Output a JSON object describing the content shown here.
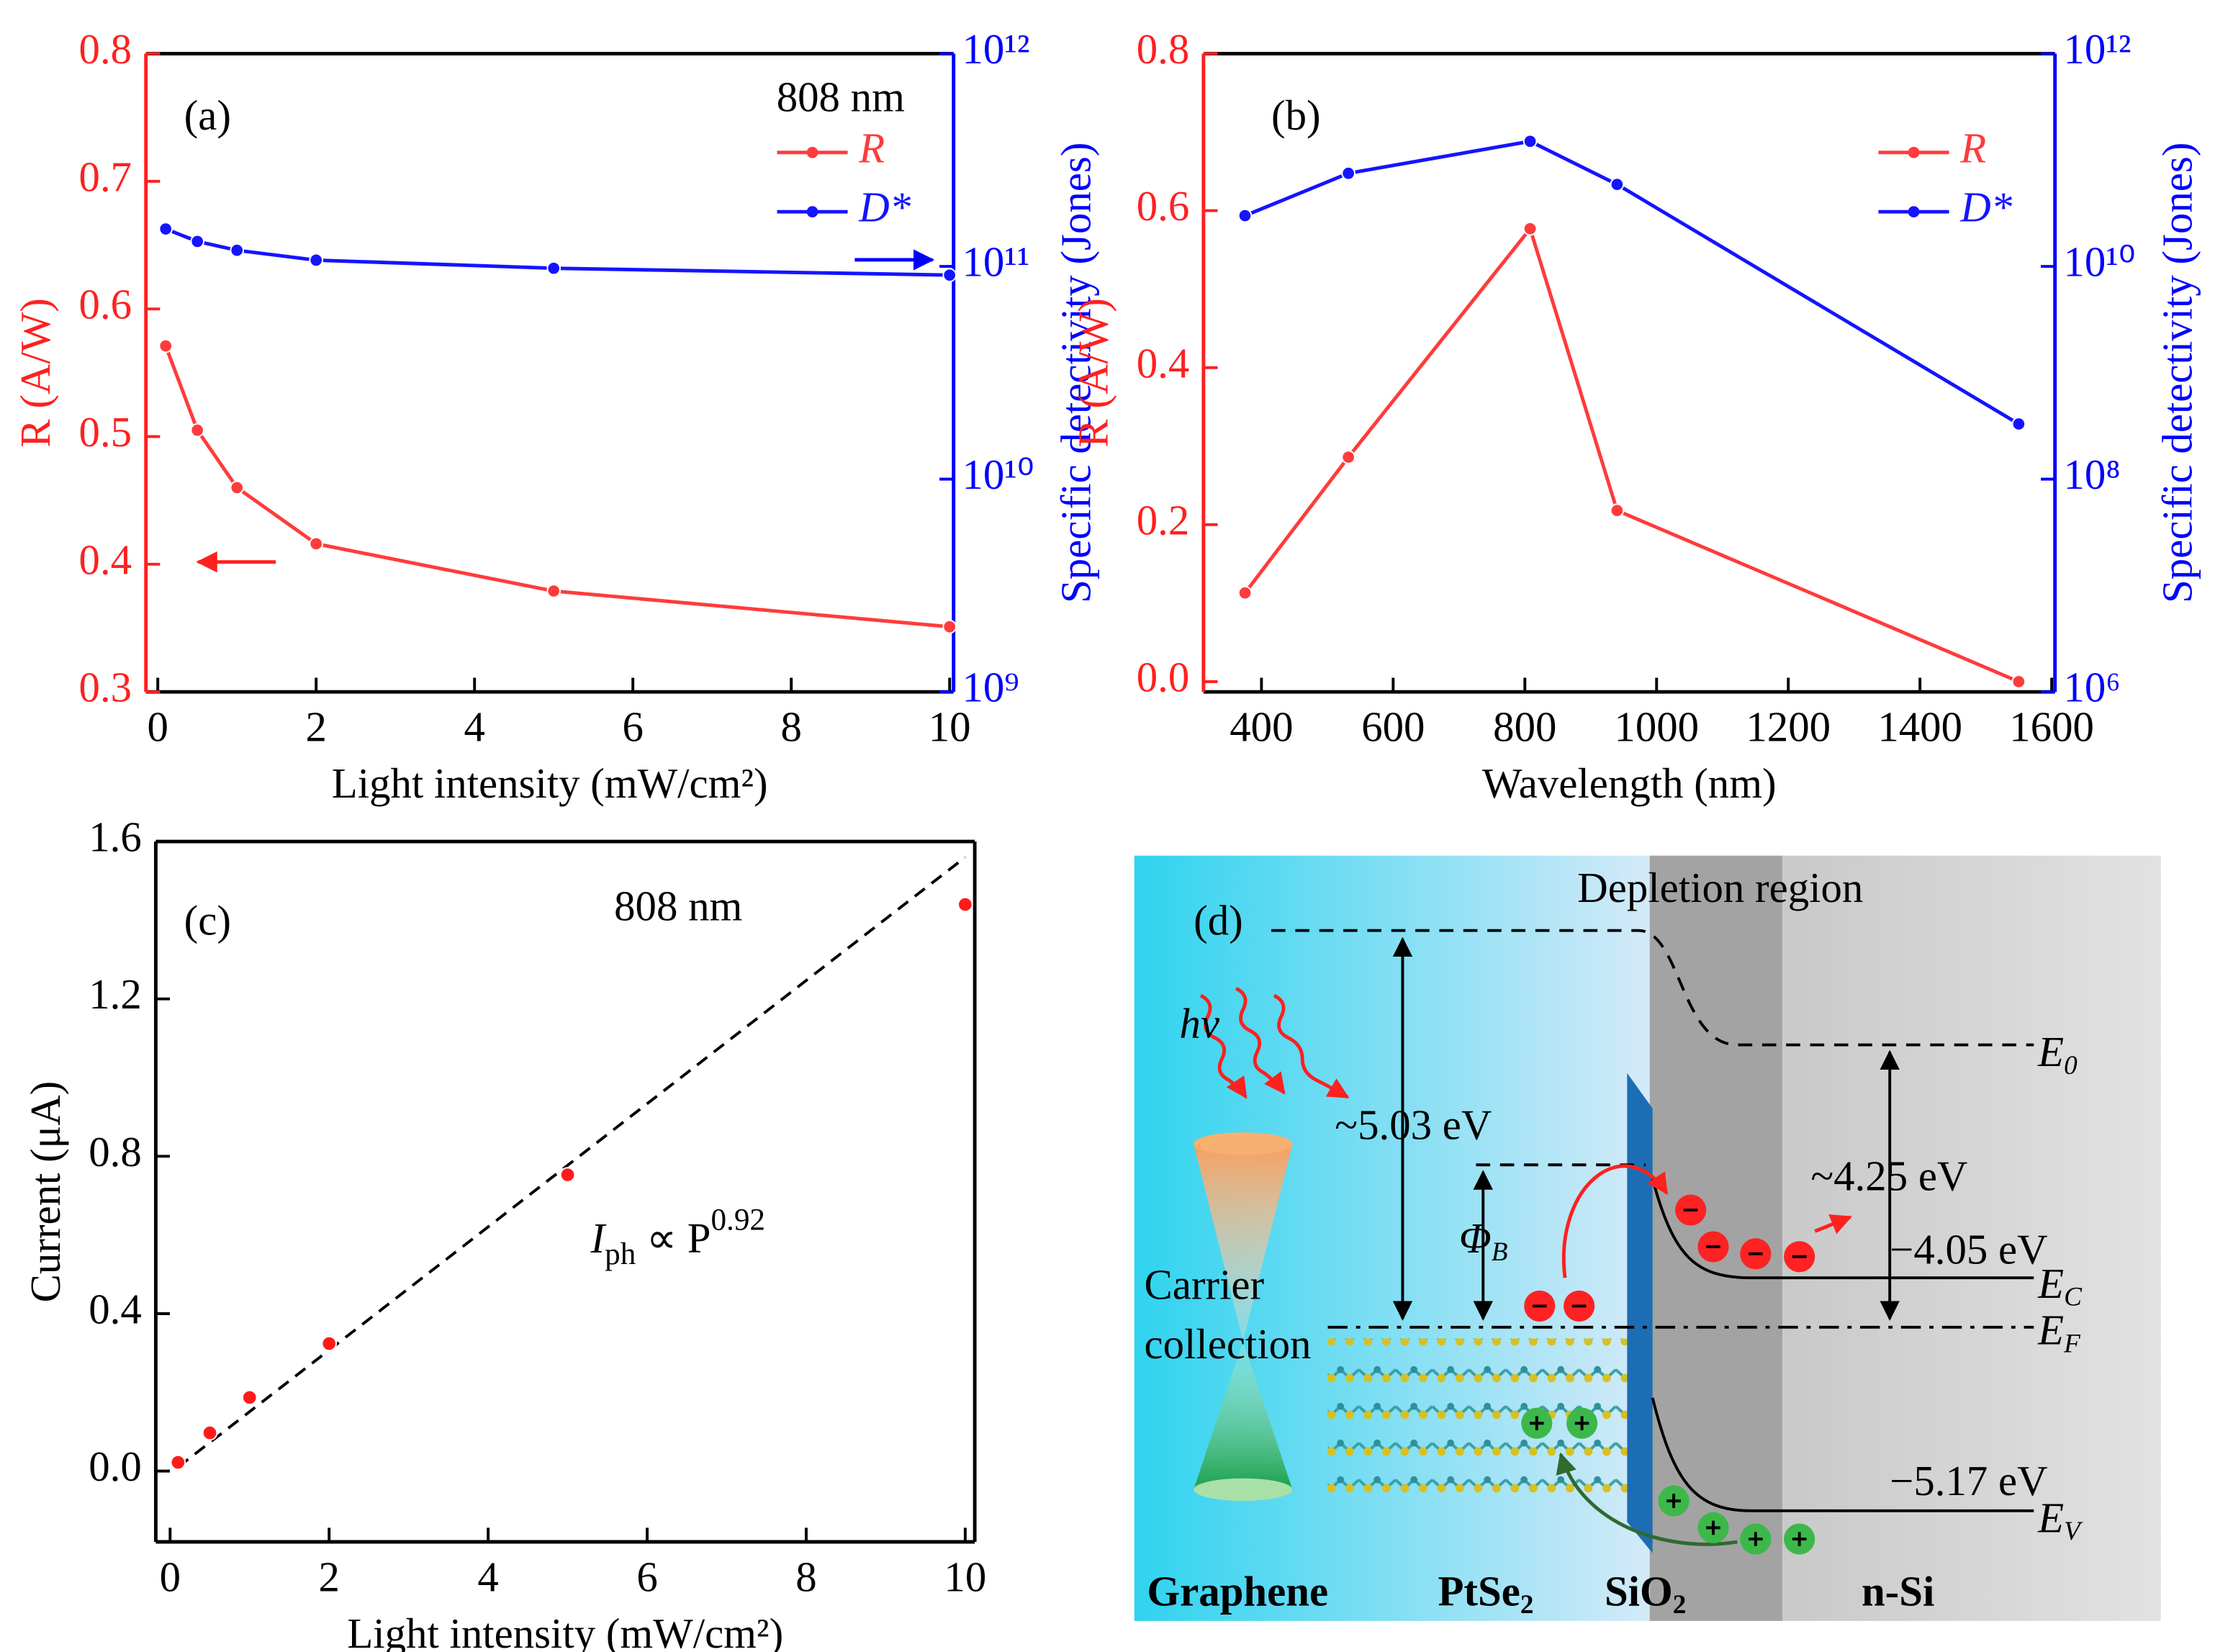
{
  "chart_data": [
    {
      "type": "line",
      "panel_label": "(a)",
      "note": "808 nm",
      "xlabel": "Light intensity (mW/cm²)",
      "ylabel": "R (A/W)",
      "y2label": "Specific detectivity (Jones)",
      "x": [
        0.1,
        0.5,
        1,
        2,
        5,
        10
      ],
      "series": [
        {
          "name": "R",
          "color": "#ff3b3b",
          "values": [
            0.571,
            0.505,
            0.46,
            0.416,
            0.379,
            0.351
          ]
        },
        {
          "name": "D*",
          "color": "#1414ff",
          "axis": "y2",
          "values": [
            150000000000.0,
            131000000000.0,
            119000000000.0,
            107000000000.0,
            98000000000.0,
            91000000000.0
          ]
        }
      ],
      "xlim": [
        -0.15,
        10.05
      ],
      "xticks": [
        0,
        2,
        4,
        6,
        8,
        10
      ],
      "ylim": [
        0.3,
        0.8
      ],
      "yticks": [
        0.3,
        0.4,
        0.5,
        0.6,
        0.7,
        0.8
      ],
      "y2lim": [
        1000000000.0,
        1000000000000.0
      ],
      "y2log": true,
      "y2ticks": [
        {
          "value": 1000000000.0,
          "label": "10⁹"
        },
        {
          "value": 10000000000.0,
          "label": "10¹⁰"
        },
        {
          "value": 100000000000.0,
          "label": "10¹¹"
        },
        {
          "value": 1000000000000.0,
          "label": "10¹²"
        }
      ],
      "ycolor": "#ff2020",
      "y2color": "#0000ff",
      "legend": "upper right"
    },
    {
      "type": "line",
      "panel_label": "(b)",
      "xlabel": "Wavelength (nm)",
      "ylabel": "R (A/W)",
      "y2label": "Specific detectivity (Jones)",
      "x": [
        375,
        532,
        808,
        940,
        1550
      ],
      "series": [
        {
          "name": "R",
          "color": "#ff3b3b",
          "values": [
            0.113,
            0.286,
            0.577,
            0.218,
            0.0
          ]
        },
        {
          "name": "D*",
          "color": "#1414ff",
          "axis": "y2",
          "values": [
            30000000000.0,
            75000000000.0,
            150000000000.0,
            59000000000.0,
            330000000.0
          ]
        }
      ],
      "xlim": [
        312,
        1605
      ],
      "xticks": [
        400,
        600,
        800,
        1000,
        1200,
        1400,
        1600
      ],
      "ylim": [
        -0.013,
        0.8
      ],
      "yticks": [
        {
          "value": 0,
          "label": "0.0"
        },
        0.2,
        0.4,
        0.6,
        0.8
      ],
      "y2lim": [
        1000000.0,
        1000000000000.0
      ],
      "y2log": true,
      "y2ticks": [
        {
          "value": 1000000.0,
          "label": "10⁶"
        },
        {
          "value": 100000000.0,
          "label": "10⁸"
        },
        {
          "value": 10000000000.0,
          "label": "10¹⁰"
        },
        {
          "value": 1000000000000.0,
          "label": "10¹²"
        }
      ],
      "ycolor": "#ff2020",
      "y2color": "#0000ff",
      "legend": "upper right"
    },
    {
      "type": "scatter",
      "panel_label": "(c)",
      "note": "808 nm",
      "xlabel": "Light intensity (mW/cm²)",
      "ylabel": "Current (μA)",
      "formula": {
        "base": "I",
        "sub": "ph",
        "mid": " ∝ P",
        "sup": "0.92"
      },
      "x": [
        0.1,
        0.5,
        1,
        2,
        5,
        10
      ],
      "series": [
        {
          "color": "#ff1a1a",
          "values": [
            0.022,
            0.097,
            0.187,
            0.324,
            0.753,
            1.44
          ]
        }
      ],
      "fit": {
        "x": [
          0.1,
          10
        ],
        "values": [
          0.01,
          1.56
        ]
      },
      "xlim": [
        -0.18,
        10.12
      ],
      "xticks": [
        0,
        2,
        4,
        6,
        8,
        10
      ],
      "ylim": [
        -0.18,
        1.6
      ],
      "yticks": [
        {
          "value": 0,
          "label": "0.0"
        },
        0.4,
        0.8,
        1.2,
        1.6
      ],
      "ycolor": "#000000"
    }
  ],
  "diagram": {
    "label": "(d)",
    "depletion": "Depletion region",
    "photon": "hv",
    "vacuum_gap": "~5.03 eV",
    "affinity": "~4.25 eV",
    "ec_value": "−4.05 eV",
    "ev_value": "−5.17 eV",
    "barrier": {
      "main": "Φ",
      "sub": "B"
    },
    "levels": [
      {
        "main": "E",
        "sub": "0"
      },
      {
        "main": "E",
        "sub": "C"
      },
      {
        "main": "E",
        "sub": "F"
      },
      {
        "main": "E",
        "sub": "V"
      }
    ],
    "carrier_collection": [
      "Carrier",
      "collection"
    ],
    "layers": [
      {
        "main": "Graphene"
      },
      {
        "main": "PtSe",
        "sub": "2"
      },
      {
        "main": "SiO",
        "sub": "2"
      },
      {
        "main": "n-Si"
      }
    ]
  }
}
